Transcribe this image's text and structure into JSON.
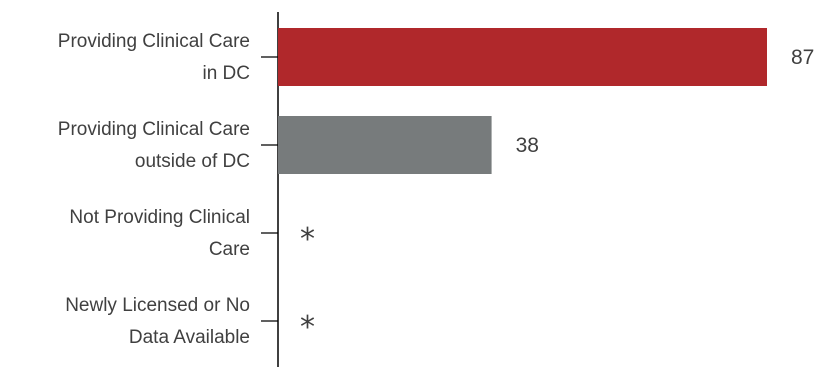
{
  "chart_data": {
    "type": "bar",
    "orientation": "horizontal",
    "categories": [
      [
        "Providing Clinical Care",
        "in DC"
      ],
      [
        "Providing Clinical Care",
        "outside of DC"
      ],
      [
        "Not Providing Clinical",
        "Care"
      ],
      [
        "Newly Licensed or No",
        "Data Available"
      ]
    ],
    "values": [
      87,
      38,
      null,
      null
    ],
    "value_labels": [
      "87",
      "38",
      "*",
      "*"
    ],
    "colors": [
      "#B0282B",
      "#777B7C",
      "#B0282B",
      "#B0282B"
    ],
    "xlim": [
      0,
      87
    ],
    "gridlines": false,
    "legend": "none"
  }
}
